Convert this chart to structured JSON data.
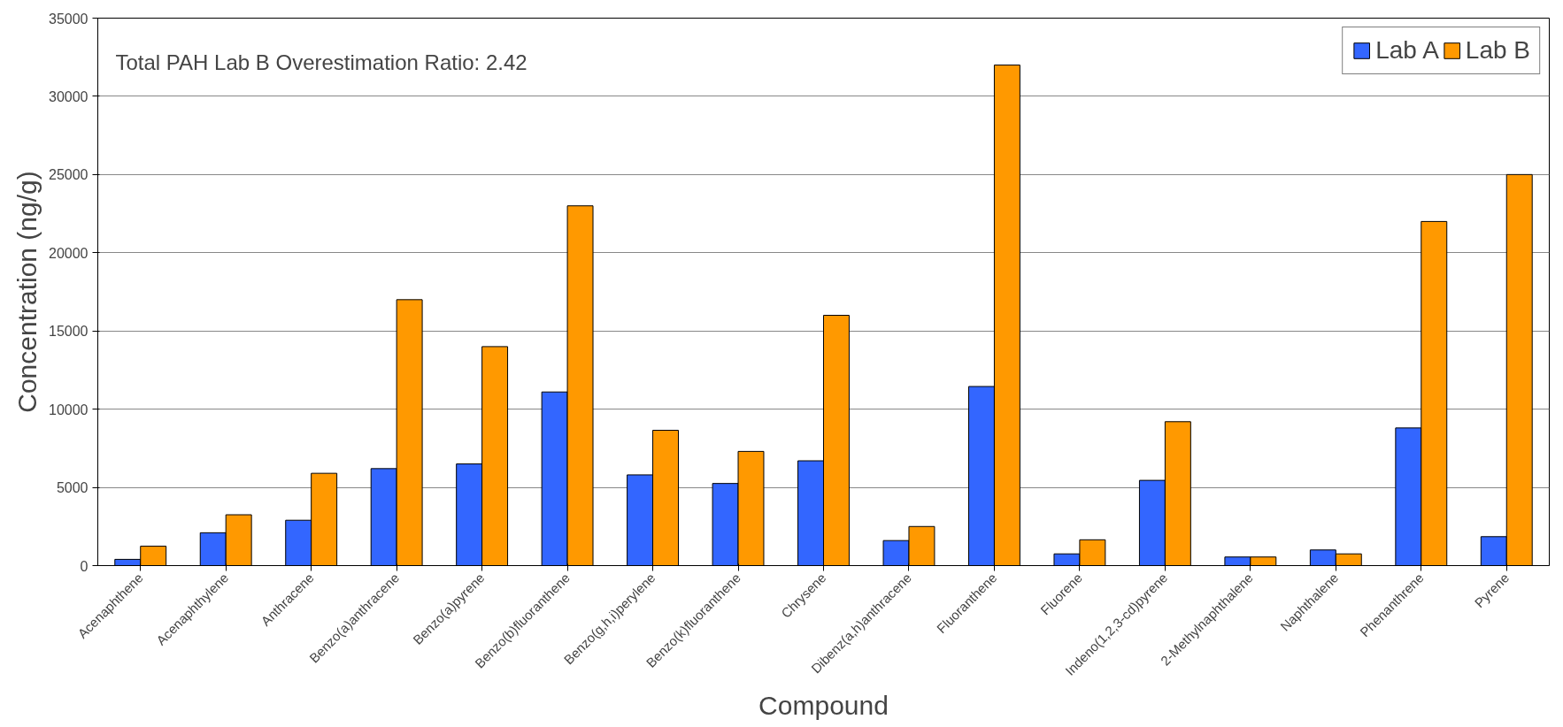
{
  "chart_data": {
    "type": "bar",
    "xlabel": "Compound",
    "ylabel": "Concentration (ng/g)",
    "categories": [
      "Acenaphthene",
      "Acenaphthylene",
      "Anthracene",
      "Benzo(a)anthracene",
      "Benzo(a)pyrene",
      "Benzo(b)fluoranthene",
      "Benzo(g,h,i)perylene",
      "Benzo(k)fluoranthene",
      "Chrysene",
      "Dibenz(a,h)anthracene",
      "Fluoranthene",
      "Fluorene",
      "Indeno(1,2,3-cd)pyrene",
      "2-Methylnaphthalene",
      "Naphthalene",
      "Phenanthrene",
      "Pyrene"
    ],
    "series": [
      {
        "name": "Lab A",
        "color": "#3366ff",
        "values": [
          400,
          2100,
          2900,
          6200,
          6500,
          11100,
          5800,
          5250,
          6700,
          1600,
          11450,
          750,
          5450,
          550,
          1000,
          8800,
          1850
        ]
      },
      {
        "name": "Lab B",
        "color": "#ff9900",
        "values": [
          1240,
          3250,
          5900,
          17000,
          14000,
          23000,
          8650,
          7300,
          16000,
          2500,
          32000,
          1650,
          9200,
          550,
          750,
          22000,
          25000
        ]
      }
    ],
    "ylim": [
      0,
      35000
    ],
    "yticks": [
      0,
      5000,
      10000,
      15000,
      20000,
      25000,
      30000,
      35000
    ],
    "grid": "y",
    "legend": "top right",
    "annotations": [
      "Total PAH Lab B Overestimation Ratio: 2.42"
    ]
  }
}
